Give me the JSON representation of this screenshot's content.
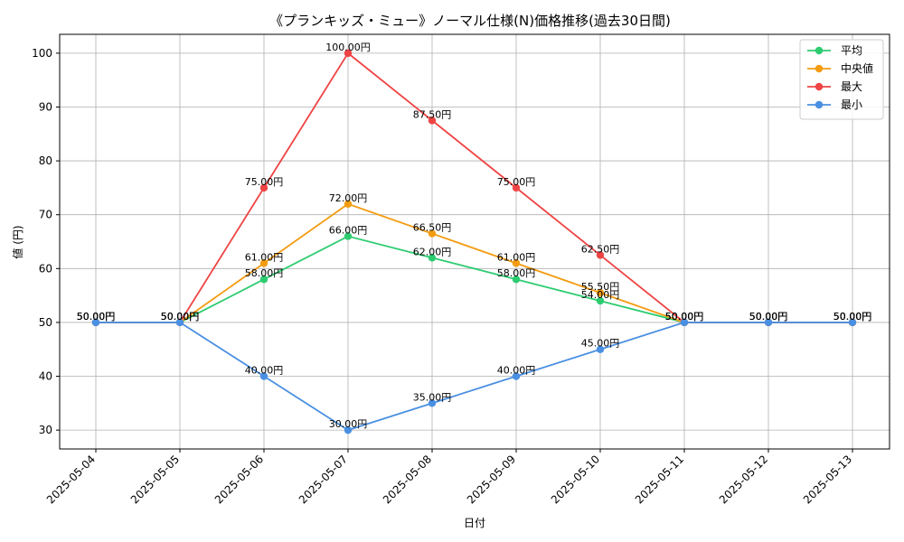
{
  "chart_data": {
    "type": "line",
    "title": "《プランキッズ・ミュー》ノーマル仕様(N)価格推移(過去30日間)",
    "xlabel": "日付",
    "ylabel": "値 (円)",
    "categories": [
      "2025-05-04",
      "2025-05-05",
      "2025-05-06",
      "2025-05-07",
      "2025-05-08",
      "2025-05-09",
      "2025-05-10",
      "2025-05-11",
      "2025-05-12",
      "2025-05-13"
    ],
    "ylim": [
      26.5,
      103.5
    ],
    "yticks": [
      30,
      40,
      50,
      60,
      70,
      80,
      90,
      100
    ],
    "grid": true,
    "legend_position": "top-right",
    "value_suffix": "円",
    "series": [
      {
        "name": "平均",
        "color": "#2ecc71",
        "values": [
          50,
          50,
          58,
          66,
          62,
          58,
          54,
          50,
          50,
          50
        ]
      },
      {
        "name": "中央値",
        "color": "#f39c12",
        "values": [
          50,
          50,
          61,
          72,
          66.5,
          61,
          55.5,
          50,
          50,
          50
        ]
      },
      {
        "name": "最大",
        "color": "#ef4444",
        "values": [
          50,
          50,
          75,
          100,
          87.5,
          75,
          62.5,
          50,
          50,
          50
        ]
      },
      {
        "name": "最小",
        "color": "#4a90e2",
        "values": [
          50,
          50,
          40,
          30,
          35,
          40,
          45,
          50,
          50,
          50
        ]
      }
    ]
  }
}
